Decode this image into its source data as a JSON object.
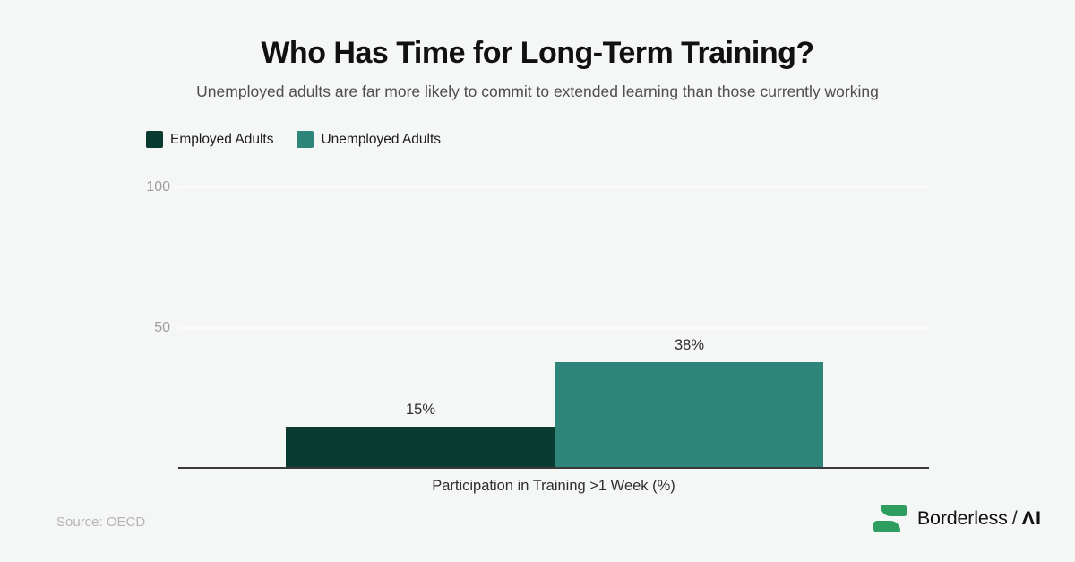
{
  "page": {
    "background": "#f5f6f6"
  },
  "header": {
    "title": "Who Has Time for Long-Term Training?",
    "subtitle": "Unemployed adults are far more likely to commit to extended learning than those currently working"
  },
  "legend": {
    "position": "top-left",
    "items": [
      {
        "label": "Employed Adults",
        "color": "#0a3b30"
      },
      {
        "label": "Unemployed Adults",
        "color": "#2e857a"
      }
    ]
  },
  "chart_data": {
    "type": "bar",
    "title": "Who Has Time for Long-Term Training?",
    "subtitle": "Unemployed adults are far more likely to commit to extended learning than those currently working",
    "categories": [
      "Employed Adults",
      "Unemployed Adults"
    ],
    "values": [
      15,
      38
    ],
    "value_labels": [
      "15%",
      "38%"
    ],
    "series_colors": [
      "#0a3b30",
      "#2e857a"
    ],
    "xlabel": "Participation in Training >1 Week (%)",
    "ylabel": "",
    "ylim": [
      0,
      100
    ],
    "yticks": [
      50,
      100
    ],
    "grid": true,
    "gridline_color": "#fbfbfb",
    "axis_line_color": "#3a3a3a",
    "legend_position": "top-left"
  },
  "axis": {
    "ytick_labels": [
      "100",
      "50"
    ]
  },
  "footer": {
    "source": "Source: OECD",
    "brand": {
      "name": "Borderless",
      "separator": "/",
      "suffix": "ΛI",
      "logo_green": "#2d9e5f"
    }
  }
}
